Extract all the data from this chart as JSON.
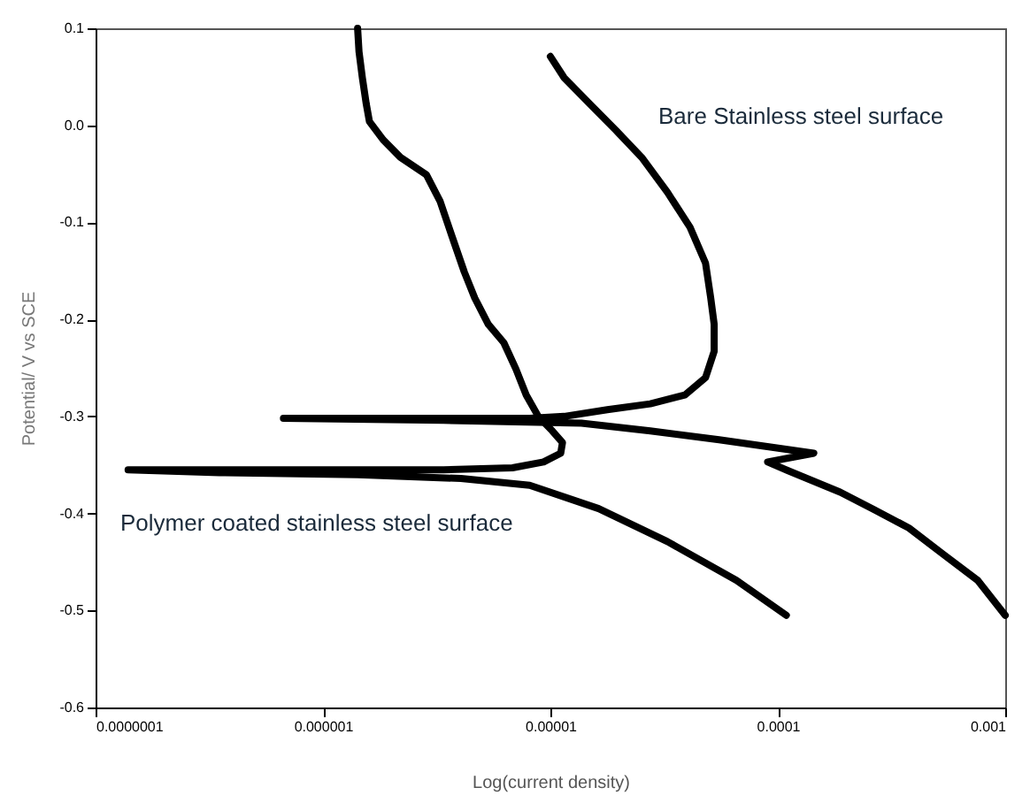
{
  "chart_data": {
    "type": "line",
    "xlabel": "Log(current density)",
    "ylabel": "Potential/ V vs SCE",
    "log": "x",
    "grid": false,
    "marker": "none",
    "line_style": "solid",
    "xlim": [
      1e-07,
      0.001
    ],
    "ylim": [
      -0.6,
      0.1
    ],
    "xticks": [
      {
        "value": 1e-07,
        "label": "0.0000001"
      },
      {
        "value": 1e-06,
        "label": "0.000001"
      },
      {
        "value": 1e-05,
        "label": "0.00001"
      },
      {
        "value": 0.0001,
        "label": "0.0001"
      },
      {
        "value": 0.001,
        "label": "0.001"
      }
    ],
    "yticks": [
      -0.6,
      -0.5,
      -0.4,
      -0.3,
      -0.2,
      -0.1,
      {
        "value": 0,
        "label": "0.0"
      },
      0.1
    ],
    "series": [
      {
        "color": "#000000",
        "x": [
          1.42e-06,
          1.44e-06,
          1.49e-06,
          1.55e-06,
          1.6e-06,
          1.84e-06,
          2.19e-06,
          2.85e-06,
          3.27e-06,
          3.7e-06,
          4.18e-06,
          4.65e-06,
          5.33e-06,
          6.24e-06,
          7.05e-06,
          7.83e-06,
          8.85e-06,
          1.02e-05,
          1.13e-05,
          1.11e-05,
          9.33e-06,
          6.81e-06,
          3.39e-06,
          1.42e-06,
          5.93e-07,
          2.48e-07,
          1.39e-07,
          3.51e-07,
          1.42e-06,
          4.04e-06,
          8.11e-06,
          1.63e-05,
          3.27e-05,
          6.58e-05,
          0.000109
        ],
        "values": [
          0.1,
          0.076,
          0.049,
          0.022,
          0.004,
          -0.015,
          -0.033,
          -0.051,
          -0.078,
          -0.115,
          -0.151,
          -0.178,
          -0.205,
          -0.224,
          -0.251,
          -0.278,
          -0.3,
          -0.315,
          -0.327,
          -0.338,
          -0.347,
          -0.353,
          -0.355,
          -0.355,
          -0.355,
          -0.355,
          -0.355,
          -0.358,
          -0.36,
          -0.364,
          -0.371,
          -0.395,
          -0.429,
          -0.469,
          -0.505
        ]
      },
      {
        "color": "#000000",
        "x": [
          1e-05,
          1.15e-05,
          1.49e-05,
          1.94e-05,
          2.52e-05,
          3.27e-05,
          4.11e-05,
          4.81e-05,
          5.07e-05,
          5.25e-05,
          5.25e-05,
          4.81e-05,
          3.9e-05,
          2.75e-05,
          1.78e-05,
          1.15e-05,
          8.11e-06,
          3.39e-06,
          1.42e-06,
          6.7e-07,
          3.39e-06,
          1.37e-05,
          2.75e-05,
          5.52e-05,
          0.000102,
          0.000144,
          9.02e-05,
          0.000111,
          0.000188,
          0.000265,
          0.000377,
          0.000533,
          0.000757,
          0.001
        ],
        "values": [
          0.071,
          0.049,
          0.022,
          -0.005,
          -0.033,
          -0.069,
          -0.105,
          -0.142,
          -0.178,
          -0.205,
          -0.233,
          -0.26,
          -0.278,
          -0.287,
          -0.293,
          -0.3,
          -0.302,
          -0.302,
          -0.302,
          -0.302,
          -0.304,
          -0.307,
          -0.315,
          -0.324,
          -0.333,
          -0.338,
          -0.347,
          -0.356,
          -0.378,
          -0.396,
          -0.415,
          -0.442,
          -0.469,
          -0.505
        ]
      }
    ],
    "annotations": [
      "Bare Stainless steel surface",
      "Polymer coated stainless steel surface"
    ]
  }
}
